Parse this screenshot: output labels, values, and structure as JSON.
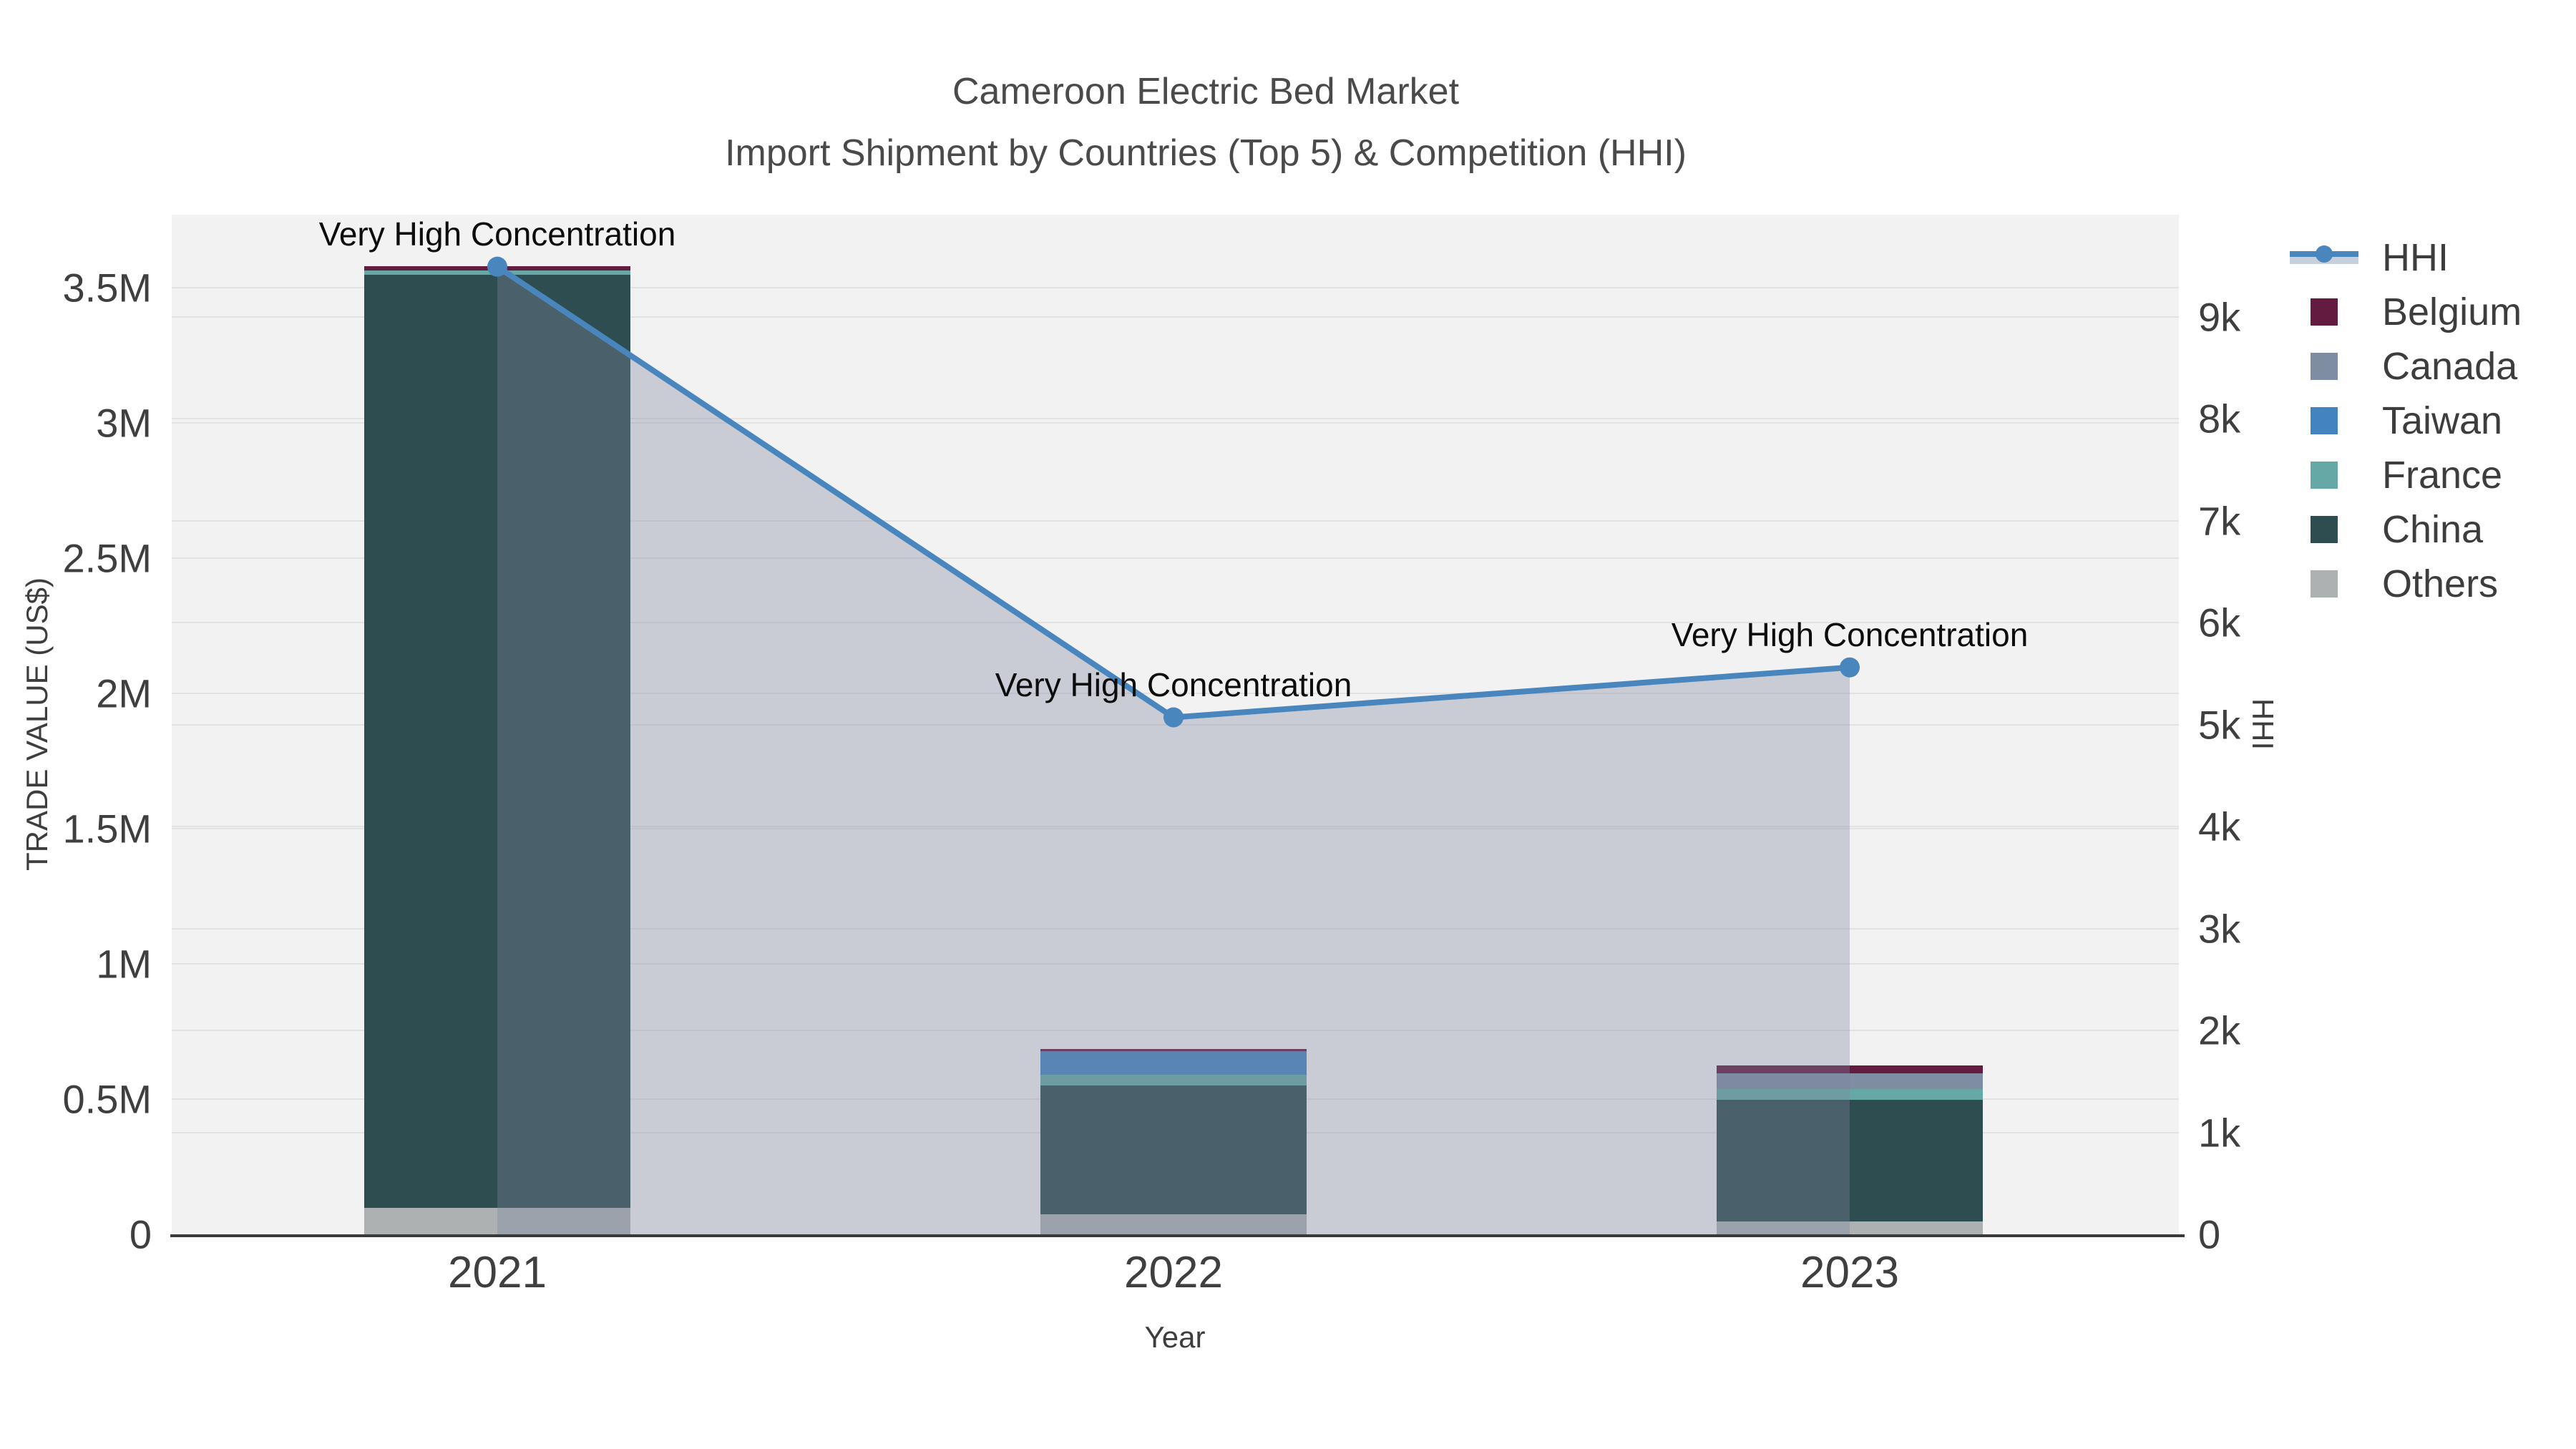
{
  "chart_data": {
    "type": "bar",
    "subtype": "stacked-bar-with-line-area-dual-axis",
    "title": "Cameroon Electric Bed Market",
    "subtitle": "Import Shipment by Countries (Top 5) & Competition (HHI)",
    "xlabel": "Year",
    "ylabel_left": "TRADE VALUE (US$)",
    "ylabel_right": "HHI",
    "categories": [
      "2021",
      "2022",
      "2023"
    ],
    "series": [
      {
        "name": "Belgium",
        "color": "#641b40",
        "values": [
          16000,
          8000,
          29000
        ]
      },
      {
        "name": "Canada",
        "color": "#7e8da1",
        "values": [
          0,
          0,
          58000
        ]
      },
      {
        "name": "Taiwan",
        "color": "#4484be",
        "values": [
          0,
          87000,
          0
        ]
      },
      {
        "name": "France",
        "color": "#66a8a5",
        "values": [
          16000,
          40000,
          40000
        ]
      },
      {
        "name": "China",
        "color": "#2e4d50",
        "values": [
          3450000,
          476000,
          450000
        ]
      },
      {
        "name": "Others",
        "color": "#adb1b1",
        "values": [
          98000,
          74000,
          48000
        ]
      }
    ],
    "stack_order_bottom_to_top": [
      "Others",
      "China",
      "France",
      "Taiwan",
      "Canada",
      "Belgium"
    ],
    "bar_totals": [
      3580000,
      685000,
      625000
    ],
    "line_series": {
      "name": "HHI",
      "axis": "right",
      "color": "#4a86be",
      "area_fill": "rgba(125,136,160,0.35)",
      "values": [
        9490,
        5070,
        5560
      ]
    },
    "point_annotations": [
      "Very High Concentration",
      "Very High Concentration",
      "Very High Concentration"
    ],
    "y_left_axis": {
      "max": 3770000,
      "tick_step": 500000,
      "tick_labels": [
        "0",
        "0.5M",
        "1M",
        "1.5M",
        "2M",
        "2.5M",
        "3M",
        "3.5M"
      ]
    },
    "y_right_axis": {
      "max": 10000,
      "tick_step": 1000,
      "tick_labels": [
        "0",
        "1k",
        "2k",
        "3k",
        "4k",
        "5k",
        "6k",
        "7k",
        "8k",
        "9k"
      ]
    },
    "grid": true,
    "plot_background": "#f2f2f2",
    "legend_position": "right",
    "legend_entries": [
      {
        "label": "HHI",
        "type": "line-marker-area",
        "color": "#4a86be"
      },
      {
        "label": "Belgium",
        "type": "square",
        "color": "#641b40"
      },
      {
        "label": "Canada",
        "type": "square",
        "color": "#7e8da1"
      },
      {
        "label": "Taiwan",
        "type": "square",
        "color": "#4484be"
      },
      {
        "label": "France",
        "type": "square",
        "color": "#66a8a5"
      },
      {
        "label": "China",
        "type": "square",
        "color": "#2e4d50"
      },
      {
        "label": "Others",
        "type": "square",
        "color": "#adb1b1"
      }
    ]
  }
}
